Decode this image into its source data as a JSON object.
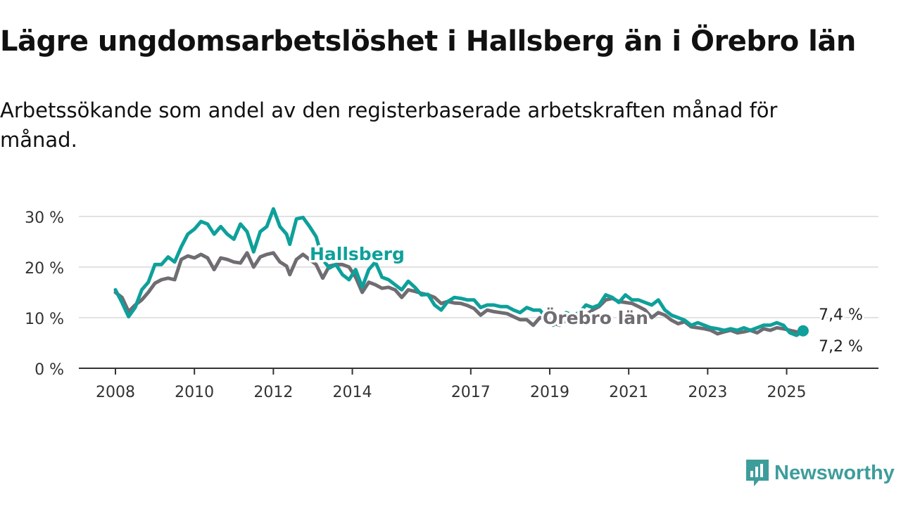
{
  "header": {
    "title": "Lägre ungdomsarbetslöshet i Hallsberg än i Örebro län",
    "subtitle": "Arbetssökande som andel av den registerbaserade arbetskraften månad för månad."
  },
  "brand": {
    "name": "Newsworthy",
    "color": "#3e9d9b",
    "icon": "newsworthy-chart-icon"
  },
  "chart_data": {
    "type": "line",
    "x_axis": {
      "ticks": [
        "2008",
        "2010",
        "2012",
        "2014",
        "2017",
        "2019",
        "2021",
        "2023",
        "2025"
      ],
      "range": [
        "2008-01",
        "2026-06"
      ]
    },
    "y_axis": {
      "ticks": [
        "0 %",
        "10 %",
        "20 %",
        "30 %"
      ],
      "tick_values": [
        0,
        10,
        20,
        30
      ],
      "range": [
        0,
        32
      ],
      "grid": true,
      "unit": "%"
    },
    "series": [
      {
        "name": "Örebro län",
        "color": "#6f6c72",
        "label": "Örebro län",
        "end_label": "7,2 %",
        "points": [
          [
            "2008-01",
            15.0
          ],
          [
            "2008-03",
            14.0
          ],
          [
            "2008-05",
            11.2
          ],
          [
            "2008-07",
            12.5
          ],
          [
            "2008-09",
            13.5
          ],
          [
            "2008-11",
            15.0
          ],
          [
            "2009-01",
            16.8
          ],
          [
            "2009-03",
            17.5
          ],
          [
            "2009-05",
            17.8
          ],
          [
            "2009-07",
            17.5
          ],
          [
            "2009-09",
            21.5
          ],
          [
            "2009-11",
            22.2
          ],
          [
            "2010-01",
            21.8
          ],
          [
            "2010-03",
            22.5
          ],
          [
            "2010-05",
            21.8
          ],
          [
            "2010-07",
            19.5
          ],
          [
            "2010-09",
            21.8
          ],
          [
            "2010-11",
            21.5
          ],
          [
            "2011-01",
            21.0
          ],
          [
            "2011-03",
            20.8
          ],
          [
            "2011-05",
            22.8
          ],
          [
            "2011-07",
            20.0
          ],
          [
            "2011-09",
            22.0
          ],
          [
            "2011-11",
            22.5
          ],
          [
            "2012-01",
            22.8
          ],
          [
            "2012-03",
            21.0
          ],
          [
            "2012-05",
            20.2
          ],
          [
            "2012-06",
            18.5
          ],
          [
            "2012-08",
            21.5
          ],
          [
            "2012-10",
            22.5
          ],
          [
            "2012-12",
            21.5
          ],
          [
            "2013-02",
            20.5
          ],
          [
            "2013-04",
            17.8
          ],
          [
            "2013-06",
            20.2
          ],
          [
            "2013-08",
            20.5
          ],
          [
            "2013-10",
            20.5
          ],
          [
            "2013-12",
            20.0
          ],
          [
            "2014-02",
            18.0
          ],
          [
            "2014-04",
            15.0
          ],
          [
            "2014-06",
            17.0
          ],
          [
            "2014-08",
            16.5
          ],
          [
            "2014-10",
            15.8
          ],
          [
            "2014-12",
            16.0
          ],
          [
            "2015-02",
            15.5
          ],
          [
            "2015-04",
            14.0
          ],
          [
            "2015-06",
            15.5
          ],
          [
            "2015-08",
            15.2
          ],
          [
            "2015-10",
            14.8
          ],
          [
            "2015-12",
            14.5
          ],
          [
            "2016-02",
            14.0
          ],
          [
            "2016-04",
            12.8
          ],
          [
            "2016-06",
            13.2
          ],
          [
            "2016-08",
            12.9
          ],
          [
            "2016-10",
            12.8
          ],
          [
            "2016-12",
            12.4
          ],
          [
            "2017-02",
            11.8
          ],
          [
            "2017-04",
            10.5
          ],
          [
            "2017-06",
            11.5
          ],
          [
            "2017-08",
            11.2
          ],
          [
            "2017-10",
            11.0
          ],
          [
            "2017-12",
            10.8
          ],
          [
            "2018-02",
            10.2
          ],
          [
            "2018-04",
            9.6
          ],
          [
            "2018-06",
            9.6
          ],
          [
            "2018-08",
            8.5
          ],
          [
            "2018-10",
            10.0
          ],
          [
            "2018-12",
            9.8
          ],
          [
            "2019-02",
            9.0
          ],
          [
            "2019-04",
            8.5
          ],
          [
            "2019-06",
            9.5
          ],
          [
            "2019-08",
            9.5
          ],
          [
            "2019-10",
            10.0
          ],
          [
            "2019-12",
            10.5
          ],
          [
            "2020-02",
            11.5
          ],
          [
            "2020-04",
            12.2
          ],
          [
            "2020-06",
            13.5
          ],
          [
            "2020-08",
            13.8
          ],
          [
            "2020-10",
            13.2
          ],
          [
            "2020-12",
            13.0
          ],
          [
            "2021-02",
            12.8
          ],
          [
            "2021-04",
            12.2
          ],
          [
            "2021-06",
            11.5
          ],
          [
            "2021-08",
            10.0
          ],
          [
            "2021-10",
            11.0
          ],
          [
            "2021-12",
            10.5
          ],
          [
            "2022-02",
            9.5
          ],
          [
            "2022-04",
            8.8
          ],
          [
            "2022-06",
            9.2
          ],
          [
            "2022-08",
            8.2
          ],
          [
            "2022-10",
            8.0
          ],
          [
            "2022-12",
            7.8
          ],
          [
            "2023-02",
            7.5
          ],
          [
            "2023-04",
            6.8
          ],
          [
            "2023-06",
            7.2
          ],
          [
            "2023-08",
            7.5
          ],
          [
            "2023-10",
            7.0
          ],
          [
            "2023-12",
            7.2
          ],
          [
            "2024-02",
            7.5
          ],
          [
            "2024-04",
            7.0
          ],
          [
            "2024-06",
            7.8
          ],
          [
            "2024-08",
            7.5
          ],
          [
            "2024-10",
            8.0
          ],
          [
            "2024-12",
            7.8
          ],
          [
            "2025-02",
            7.5
          ],
          [
            "2025-04",
            7.2
          ],
          [
            "2025-06",
            7.2
          ]
        ]
      },
      {
        "name": "Hallsberg",
        "color": "#0ea09a",
        "label": "Hallsberg",
        "end_label": "7,4 %",
        "points": [
          [
            "2008-01",
            15.5
          ],
          [
            "2008-03",
            13.0
          ],
          [
            "2008-05",
            10.2
          ],
          [
            "2008-07",
            12.0
          ],
          [
            "2008-09",
            15.5
          ],
          [
            "2008-11",
            17.0
          ],
          [
            "2009-01",
            20.5
          ],
          [
            "2009-03",
            20.5
          ],
          [
            "2009-05",
            22.0
          ],
          [
            "2009-07",
            21.0
          ],
          [
            "2009-09",
            24.0
          ],
          [
            "2009-11",
            26.5
          ],
          [
            "2010-01",
            27.5
          ],
          [
            "2010-03",
            29.0
          ],
          [
            "2010-05",
            28.5
          ],
          [
            "2010-07",
            26.5
          ],
          [
            "2010-09",
            28.0
          ],
          [
            "2010-11",
            26.5
          ],
          [
            "2011-01",
            25.5
          ],
          [
            "2011-03",
            28.5
          ],
          [
            "2011-05",
            27.0
          ],
          [
            "2011-07",
            23.0
          ],
          [
            "2011-09",
            27.0
          ],
          [
            "2011-11",
            28.0
          ],
          [
            "2012-01",
            31.5
          ],
          [
            "2012-03",
            28.0
          ],
          [
            "2012-05",
            26.5
          ],
          [
            "2012-06",
            24.5
          ],
          [
            "2012-08",
            29.5
          ],
          [
            "2012-10",
            29.8
          ],
          [
            "2012-12",
            28.0
          ],
          [
            "2013-02",
            26.0
          ],
          [
            "2013-04",
            21.5
          ],
          [
            "2013-06",
            19.8
          ],
          [
            "2013-08",
            20.5
          ],
          [
            "2013-10",
            18.5
          ],
          [
            "2013-12",
            17.5
          ],
          [
            "2014-02",
            19.5
          ],
          [
            "2014-04",
            16.0
          ],
          [
            "2014-06",
            19.5
          ],
          [
            "2014-08",
            21.0
          ],
          [
            "2014-10",
            18.0
          ],
          [
            "2014-12",
            17.5
          ],
          [
            "2015-02",
            16.5
          ],
          [
            "2015-04",
            15.5
          ],
          [
            "2015-06",
            17.2
          ],
          [
            "2015-08",
            16.0
          ],
          [
            "2015-10",
            14.5
          ],
          [
            "2015-12",
            14.6
          ],
          [
            "2016-02",
            12.5
          ],
          [
            "2016-04",
            11.5
          ],
          [
            "2016-06",
            13.2
          ],
          [
            "2016-08",
            14.0
          ],
          [
            "2016-10",
            13.8
          ],
          [
            "2016-12",
            13.5
          ],
          [
            "2017-02",
            13.5
          ],
          [
            "2017-04",
            12.0
          ],
          [
            "2017-06",
            12.5
          ],
          [
            "2017-08",
            12.5
          ],
          [
            "2017-10",
            12.2
          ],
          [
            "2017-12",
            12.2
          ],
          [
            "2018-02",
            11.5
          ],
          [
            "2018-04",
            11.0
          ],
          [
            "2018-06",
            12.0
          ],
          [
            "2018-08",
            11.5
          ],
          [
            "2018-10",
            11.5
          ],
          [
            "2018-12",
            10.0
          ],
          [
            "2019-02",
            8.5
          ],
          [
            "2019-04",
            9.5
          ],
          [
            "2019-06",
            11.0
          ],
          [
            "2019-08",
            10.5
          ],
          [
            "2019-10",
            11.0
          ],
          [
            "2019-12",
            12.5
          ],
          [
            "2020-02",
            12.0
          ],
          [
            "2020-04",
            12.5
          ],
          [
            "2020-06",
            14.5
          ],
          [
            "2020-08",
            14.0
          ],
          [
            "2020-10",
            13.0
          ],
          [
            "2020-12",
            14.5
          ],
          [
            "2021-02",
            13.5
          ],
          [
            "2021-04",
            13.5
          ],
          [
            "2021-06",
            13.0
          ],
          [
            "2021-08",
            12.5
          ],
          [
            "2021-10",
            13.5
          ],
          [
            "2021-12",
            11.5
          ],
          [
            "2022-02",
            10.5
          ],
          [
            "2022-04",
            10.0
          ],
          [
            "2022-06",
            9.5
          ],
          [
            "2022-08",
            8.5
          ],
          [
            "2022-10",
            9.0
          ],
          [
            "2022-12",
            8.5
          ],
          [
            "2023-02",
            8.0
          ],
          [
            "2023-04",
            7.8
          ],
          [
            "2023-06",
            7.5
          ],
          [
            "2023-08",
            7.8
          ],
          [
            "2023-10",
            7.5
          ],
          [
            "2023-12",
            8.0
          ],
          [
            "2024-02",
            7.5
          ],
          [
            "2024-04",
            8.0
          ],
          [
            "2024-06",
            8.5
          ],
          [
            "2024-08",
            8.5
          ],
          [
            "2024-10",
            9.0
          ],
          [
            "2024-12",
            8.5
          ],
          [
            "2025-02",
            7.0
          ],
          [
            "2025-04",
            6.5
          ],
          [
            "2025-06",
            7.4
          ]
        ]
      }
    ]
  }
}
